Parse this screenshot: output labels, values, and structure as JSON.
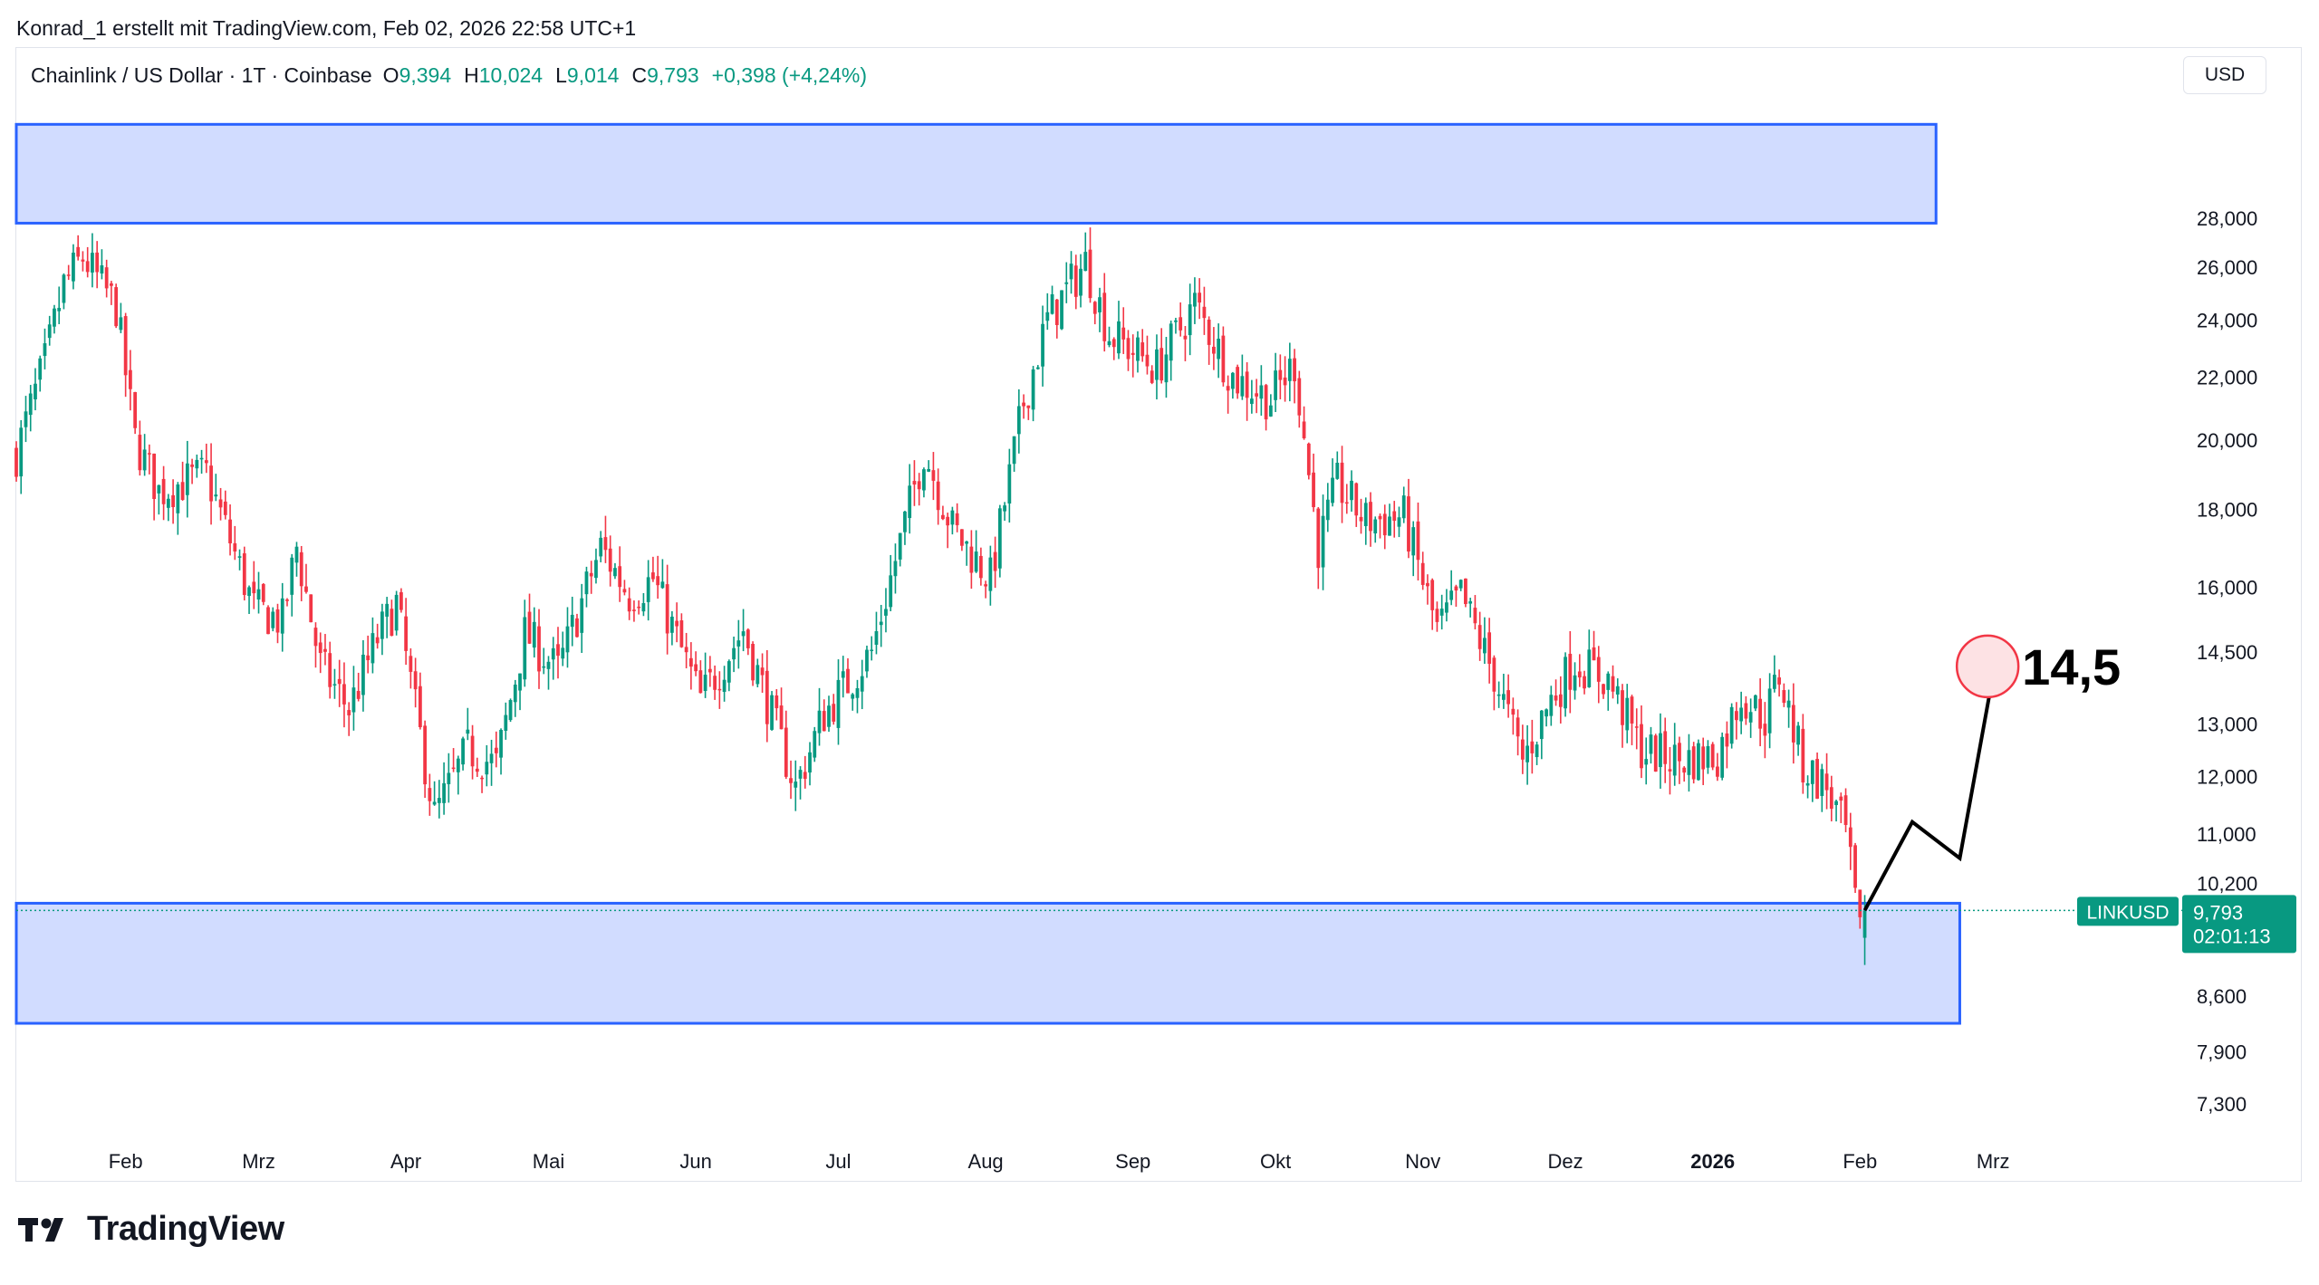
{
  "header": {
    "credit": "Konrad_1 erstellt mit TradingView.com, Feb 02, 2026 22:58 UTC+1"
  },
  "legend": {
    "symbol": "Chainlink / US Dollar · 1T · Coinbase",
    "o_key": "O",
    "o_val": "9,394",
    "h_key": "H",
    "h_val": "10,024",
    "l_key": "L",
    "l_val": "9,014",
    "c_key": "C",
    "c_val": "9,793",
    "change": "+0,398 (+4,24%)"
  },
  "currency": "USD",
  "price_tag": {
    "ticker": "LINKUSD",
    "price": "9,793",
    "countdown": "02:01:13"
  },
  "annotation": {
    "target_label": "14,5"
  },
  "brand": {
    "name": "TradingView"
  },
  "colors": {
    "up": "#089981",
    "down": "#f23645",
    "zone_fill": "#d1dcff",
    "zone_border": "#2962ff",
    "axis_text": "#131722"
  },
  "chart_data": {
    "type": "candlestick",
    "y_scale": "log",
    "ylim": [
      6900,
      34000
    ],
    "y_ticks": [
      "28,000",
      "26,000",
      "24,000",
      "22,000",
      "20,000",
      "18,000",
      "16,000",
      "14,500",
      "13,000",
      "12,000",
      "11,000",
      "10,200",
      "8,600",
      "7,900",
      "7,300"
    ],
    "y_tick_values": [
      28000,
      26000,
      24000,
      22000,
      20000,
      18000,
      16000,
      14500,
      13000,
      12000,
      11000,
      10200,
      8600,
      7900,
      7300
    ],
    "x_ticks": [
      "Feb",
      "Mrz",
      "Apr",
      "Mai",
      "Jun",
      "Jul",
      "Aug",
      "Sep",
      "Okt",
      "Nov",
      "Dez",
      "2026",
      "Feb",
      "Mrz"
    ],
    "x_tick_dates": [
      "2025-02-01",
      "2025-03-01",
      "2025-04-01",
      "2025-05-01",
      "2025-06-01",
      "2025-07-01",
      "2025-08-01",
      "2025-09-01",
      "2025-10-01",
      "2025-11-01",
      "2025-12-01",
      "2026-01-01",
      "2026-02-01",
      "2026-03-01"
    ],
    "x_range": [
      "2025-01-09",
      "2026-04-10"
    ],
    "close_anchors": [
      {
        "date": "2025-01-09",
        "close": 19600
      },
      {
        "date": "2025-01-15",
        "close": 22500
      },
      {
        "date": "2025-01-19",
        "close": 25300
      },
      {
        "date": "2025-01-23",
        "close": 26400
      },
      {
        "date": "2025-01-30",
        "close": 24500
      },
      {
        "date": "2025-02-03",
        "close": 20000
      },
      {
        "date": "2025-02-08",
        "close": 18500
      },
      {
        "date": "2025-02-18",
        "close": 19000
      },
      {
        "date": "2025-02-28",
        "close": 15500
      },
      {
        "date": "2025-03-06",
        "close": 15200
      },
      {
        "date": "2025-03-09",
        "close": 17000
      },
      {
        "date": "2025-03-14",
        "close": 14200
      },
      {
        "date": "2025-03-20",
        "close": 13300
      },
      {
        "date": "2025-03-26",
        "close": 14800
      },
      {
        "date": "2025-03-30",
        "close": 15600
      },
      {
        "date": "2025-04-07",
        "close": 11300
      },
      {
        "date": "2025-04-14",
        "close": 12500
      },
      {
        "date": "2025-04-20",
        "close": 12200
      },
      {
        "date": "2025-04-26",
        "close": 14900
      },
      {
        "date": "2025-05-03",
        "close": 14100
      },
      {
        "date": "2025-05-12",
        "close": 17000
      },
      {
        "date": "2025-05-18",
        "close": 15800
      },
      {
        "date": "2025-05-23",
        "close": 16200
      },
      {
        "date": "2025-06-02",
        "close": 13500
      },
      {
        "date": "2025-06-11",
        "close": 15000
      },
      {
        "date": "2025-06-22",
        "close": 11800
      },
      {
        "date": "2025-06-28",
        "close": 13200
      },
      {
        "date": "2025-07-08",
        "close": 14500
      },
      {
        "date": "2025-07-19",
        "close": 19700
      },
      {
        "date": "2025-07-25",
        "close": 17500
      },
      {
        "date": "2025-08-02",
        "close": 16200
      },
      {
        "date": "2025-08-09",
        "close": 21200
      },
      {
        "date": "2025-08-14",
        "close": 24000
      },
      {
        "date": "2025-08-22",
        "close": 26200
      },
      {
        "date": "2025-08-27",
        "close": 23500
      },
      {
        "date": "2025-09-06",
        "close": 22300
      },
      {
        "date": "2025-09-14",
        "close": 24600
      },
      {
        "date": "2025-09-22",
        "close": 22000
      },
      {
        "date": "2025-09-30",
        "close": 21300
      },
      {
        "date": "2025-10-05",
        "close": 22500
      },
      {
        "date": "2025-10-10",
        "close": 17000
      },
      {
        "date": "2025-10-14",
        "close": 18700
      },
      {
        "date": "2025-10-20",
        "close": 17700
      },
      {
        "date": "2025-10-28",
        "close": 17800
      },
      {
        "date": "2025-11-04",
        "close": 15000
      },
      {
        "date": "2025-11-09",
        "close": 15800
      },
      {
        "date": "2025-11-16",
        "close": 14000
      },
      {
        "date": "2025-11-22",
        "close": 12300
      },
      {
        "date": "2025-11-28",
        "close": 13500
      },
      {
        "date": "2025-12-03",
        "close": 14300
      },
      {
        "date": "2025-12-10",
        "close": 13900
      },
      {
        "date": "2025-12-17",
        "close": 12500
      },
      {
        "date": "2025-12-25",
        "close": 12300
      },
      {
        "date": "2026-01-02",
        "close": 12400
      },
      {
        "date": "2026-01-07",
        "close": 13600
      },
      {
        "date": "2026-01-12",
        "close": 13100
      },
      {
        "date": "2026-01-15",
        "close": 14000
      },
      {
        "date": "2026-01-20",
        "close": 12200
      },
      {
        "date": "2026-01-25",
        "close": 11800
      },
      {
        "date": "2026-01-29",
        "close": 11000
      },
      {
        "date": "2026-02-01",
        "close": 9400
      },
      {
        "date": "2026-02-02",
        "close": 9793
      }
    ],
    "last_candle": {
      "date": "2026-02-02",
      "open": 9394,
      "high": 10024,
      "low": 9014,
      "close": 9793
    },
    "resistance_zone": {
      "date_start": "2025-01-09",
      "date_end": "2026-02-17",
      "low": 27800,
      "high": 32300
    },
    "support_zone": {
      "date_start": "2025-01-09",
      "date_end": "2026-02-22",
      "low": 8250,
      "high": 9900
    },
    "projection_path": [
      {
        "date": "2026-02-02",
        "price": 9793
      },
      {
        "date": "2026-02-12",
        "price": 11200
      },
      {
        "date": "2026-02-22",
        "price": 10600
      },
      {
        "date": "2026-03-01",
        "price": 14000
      }
    ],
    "target_marker": {
      "date": "2026-03-01",
      "price": 14500
    }
  }
}
